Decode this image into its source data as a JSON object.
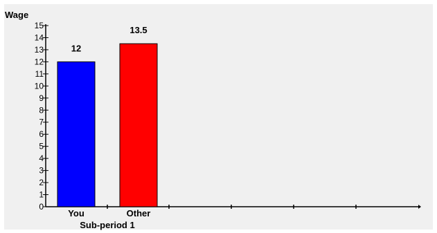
{
  "chart_data": {
    "type": "bar",
    "ylabel": "Wage",
    "ylim": [
      0,
      15
    ],
    "yticks": [
      0,
      1,
      2,
      3,
      4,
      5,
      6,
      7,
      8,
      9,
      10,
      11,
      12,
      13,
      14,
      15
    ],
    "categories": [
      "You",
      "Other"
    ],
    "values": [
      12,
      13.5
    ],
    "data_labels": [
      "12",
      "13.5"
    ],
    "colors": [
      "#0000ff",
      "#ff0000"
    ],
    "group_label": "Sub-period 1",
    "grid": false,
    "legend": "none"
  }
}
